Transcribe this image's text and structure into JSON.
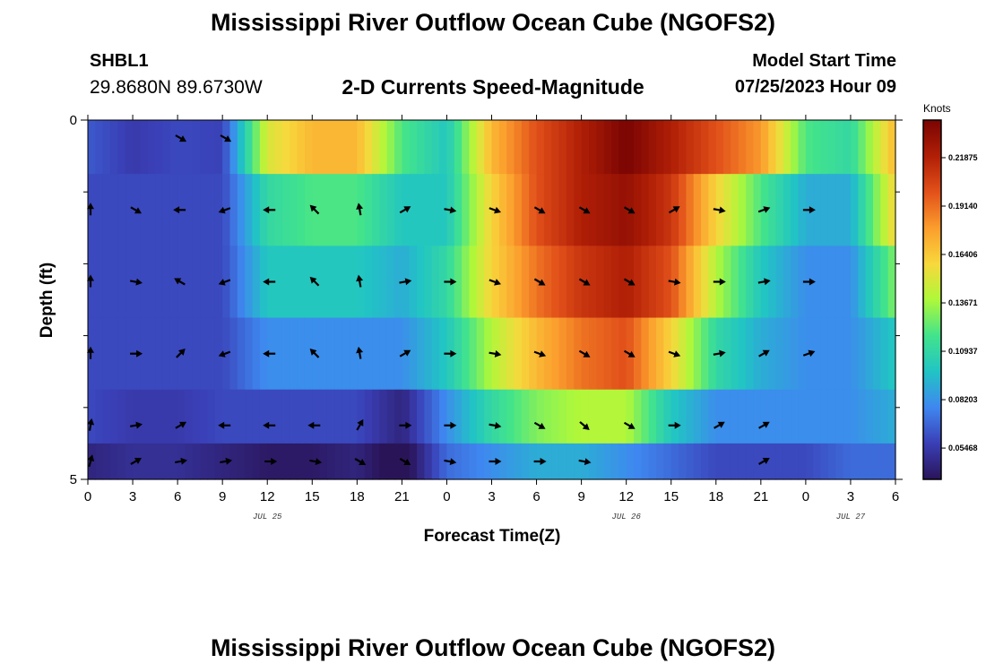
{
  "header": {
    "title": "Mississippi River Outflow Ocean Cube (NGOFS2)",
    "station_id": "SHBL1",
    "station_coords": "29.8680N  89.6730W",
    "subtitle": "2-D Currents Speed-Magnitude",
    "model_start_label": "Model Start Time",
    "model_start_value": "07/25/2023 Hour 09"
  },
  "footer": {
    "title": "Mississippi River Outflow Ocean Cube (NGOFS2)"
  },
  "chart_data": {
    "type": "heatmap",
    "title": "2-D Currents Speed-Magnitude",
    "xlabel": "Forecast Time(Z)",
    "ylabel": "Depth (ft)",
    "x_tick_labels": [
      "0",
      "3",
      "6",
      "9",
      "12",
      "15",
      "18",
      "21",
      "0",
      "3",
      "6",
      "9",
      "12",
      "15",
      "18",
      "21",
      "0",
      "3",
      "6"
    ],
    "date_labels": [
      {
        "at_tick": 4,
        "label": "JUL 25"
      },
      {
        "at_tick": 12,
        "label": "JUL 26"
      },
      {
        "at_tick": 17,
        "label": "JUL 27"
      }
    ],
    "y_tick_labels": [
      "0",
      "5"
    ],
    "ylim": [
      0,
      5
    ],
    "colorbar": {
      "unit": "Knots",
      "labels": [
        "0.21875",
        "0.19140",
        "0.16406",
        "0.13671",
        "0.10937",
        "0.08203",
        "0.05468"
      ],
      "range": [
        0.037,
        0.24
      ],
      "colors": [
        "#2a1458",
        "#3a3fb6",
        "#3f87f0",
        "#21c4c4",
        "#42e38c",
        "#aef83a",
        "#f8d83c",
        "#fb9d2d",
        "#e2501a",
        "#b01f06",
        "#7a0403"
      ]
    },
    "depth_rows": [
      0.25,
      1.25,
      2.25,
      3.25,
      4.25,
      4.75
    ],
    "x_hours": [
      0,
      3,
      6,
      9,
      12,
      15,
      18,
      21,
      24,
      27,
      30,
      33,
      36,
      39,
      42,
      45,
      48,
      51,
      54
    ],
    "speed_knots": [
      [
        0.065,
        0.055,
        0.06,
        0.058,
        0.15,
        0.17,
        0.17,
        0.12,
        0.1,
        0.17,
        0.2,
        0.22,
        0.24,
        0.22,
        0.2,
        0.18,
        0.12,
        0.11,
        0.17
      ],
      [
        0.06,
        0.06,
        0.06,
        0.06,
        0.11,
        0.12,
        0.12,
        0.1,
        0.1,
        0.16,
        0.2,
        0.22,
        0.23,
        0.21,
        0.16,
        0.12,
        0.09,
        0.09,
        0.16
      ],
      [
        0.06,
        0.06,
        0.06,
        0.06,
        0.1,
        0.1,
        0.1,
        0.09,
        0.11,
        0.16,
        0.19,
        0.21,
        0.22,
        0.2,
        0.14,
        0.1,
        0.08,
        0.08,
        0.13
      ],
      [
        0.06,
        0.06,
        0.06,
        0.06,
        0.08,
        0.08,
        0.08,
        0.08,
        0.1,
        0.14,
        0.17,
        0.19,
        0.2,
        0.16,
        0.11,
        0.09,
        0.08,
        0.08,
        0.1
      ],
      [
        0.06,
        0.055,
        0.055,
        0.06,
        0.06,
        0.06,
        0.06,
        0.045,
        0.08,
        0.11,
        0.13,
        0.14,
        0.14,
        0.1,
        0.08,
        0.08,
        0.08,
        0.08,
        0.09
      ],
      [
        0.045,
        0.05,
        0.05,
        0.045,
        0.04,
        0.04,
        0.045,
        0.03,
        0.07,
        0.08,
        0.09,
        0.09,
        0.08,
        0.07,
        0.06,
        0.06,
        0.06,
        0.07,
        0.07
      ]
    ],
    "direction_deg": [
      [
        null,
        null,
        120,
        120,
        null,
        null,
        null,
        null,
        null,
        null,
        null,
        null,
        null,
        null,
        null,
        null,
        null,
        null,
        null
      ],
      [
        0,
        120,
        270,
        250,
        270,
        315,
        350,
        60,
        100,
        110,
        120,
        120,
        120,
        60,
        100,
        70,
        90,
        null,
        null
      ],
      [
        0,
        100,
        300,
        250,
        270,
        315,
        350,
        80,
        90,
        110,
        120,
        120,
        120,
        100,
        90,
        80,
        90,
        null,
        null
      ],
      [
        0,
        90,
        45,
        250,
        270,
        315,
        350,
        60,
        90,
        100,
        110,
        120,
        120,
        110,
        80,
        60,
        70,
        null,
        null
      ],
      [
        10,
        80,
        60,
        270,
        270,
        270,
        30,
        90,
        90,
        100,
        120,
        130,
        120,
        90,
        60,
        60,
        null,
        null,
        null
      ],
      [
        15,
        60,
        80,
        80,
        90,
        100,
        120,
        120,
        100,
        90,
        90,
        100,
        null,
        null,
        null,
        60,
        null,
        null,
        null
      ]
    ]
  }
}
